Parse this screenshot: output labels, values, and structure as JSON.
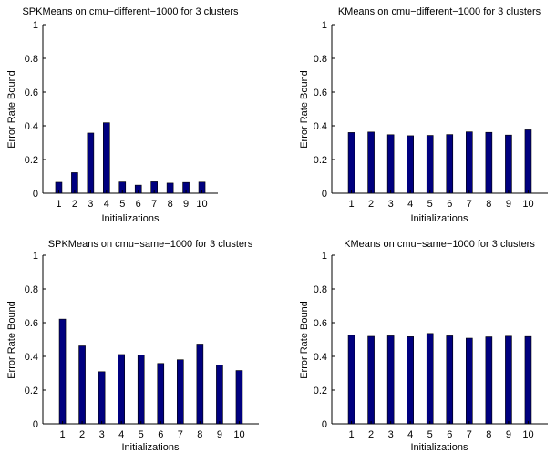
{
  "colors": {
    "bar": "#00007f",
    "axis": "#000000",
    "background": "#ffffff"
  },
  "chart_data": [
    {
      "type": "bar",
      "title": "SPKMeans on cmu−different−1000 for 3 clusters",
      "xlabel": "Initializations",
      "ylabel": "Error Rate Bound",
      "categories": [
        "1",
        "2",
        "3",
        "4",
        "5",
        "6",
        "7",
        "8",
        "9",
        "10"
      ],
      "values": [
        0.065,
        0.122,
        0.357,
        0.418,
        0.067,
        0.048,
        0.068,
        0.06,
        0.064,
        0.066
      ],
      "ylim": [
        0,
        1
      ],
      "yticks": [
        "0",
        "0.2",
        "0.4",
        "0.6",
        "0.8",
        "1"
      ],
      "grid": false
    },
    {
      "type": "bar",
      "title": "KMeans on cmu−different−1000 for 3 clusters",
      "xlabel": "Initializations",
      "ylabel": "Error Rate Bound",
      "categories": [
        "1",
        "2",
        "3",
        "4",
        "5",
        "6",
        "7",
        "8",
        "9",
        "10"
      ],
      "values": [
        0.36,
        0.363,
        0.347,
        0.341,
        0.343,
        0.348,
        0.364,
        0.361,
        0.345,
        0.376
      ],
      "ylim": [
        0,
        1
      ],
      "yticks": [
        "0",
        "0.2",
        "0.4",
        "0.6",
        "0.8",
        "1"
      ],
      "grid": false
    },
    {
      "type": "bar",
      "title": "SPKMeans on cmu−same−1000 for 3 clusters",
      "xlabel": "Initializations",
      "ylabel": "Error Rate Bound",
      "categories": [
        "1",
        "2",
        "3",
        "4",
        "5",
        "6",
        "7",
        "8",
        "9",
        "10"
      ],
      "values": [
        0.621,
        0.462,
        0.309,
        0.411,
        0.408,
        0.358,
        0.38,
        0.473,
        0.348,
        0.316
      ],
      "ylim": [
        0,
        1
      ],
      "yticks": [
        "0",
        "0.2",
        "0.4",
        "0.6",
        "0.8",
        "1"
      ],
      "grid": false
    },
    {
      "type": "bar",
      "title": "KMeans on cmu−same−1000 for 3 clusters",
      "xlabel": "Initializations",
      "ylabel": "Error Rate Bound",
      "categories": [
        "1",
        "2",
        "3",
        "4",
        "5",
        "6",
        "7",
        "8",
        "9",
        "10"
      ],
      "values": [
        0.525,
        0.519,
        0.522,
        0.517,
        0.536,
        0.522,
        0.508,
        0.516,
        0.52,
        0.518
      ],
      "ylim": [
        0,
        1
      ],
      "yticks": [
        "0",
        "0.2",
        "0.4",
        "0.6",
        "0.8",
        "1"
      ],
      "grid": false
    }
  ]
}
